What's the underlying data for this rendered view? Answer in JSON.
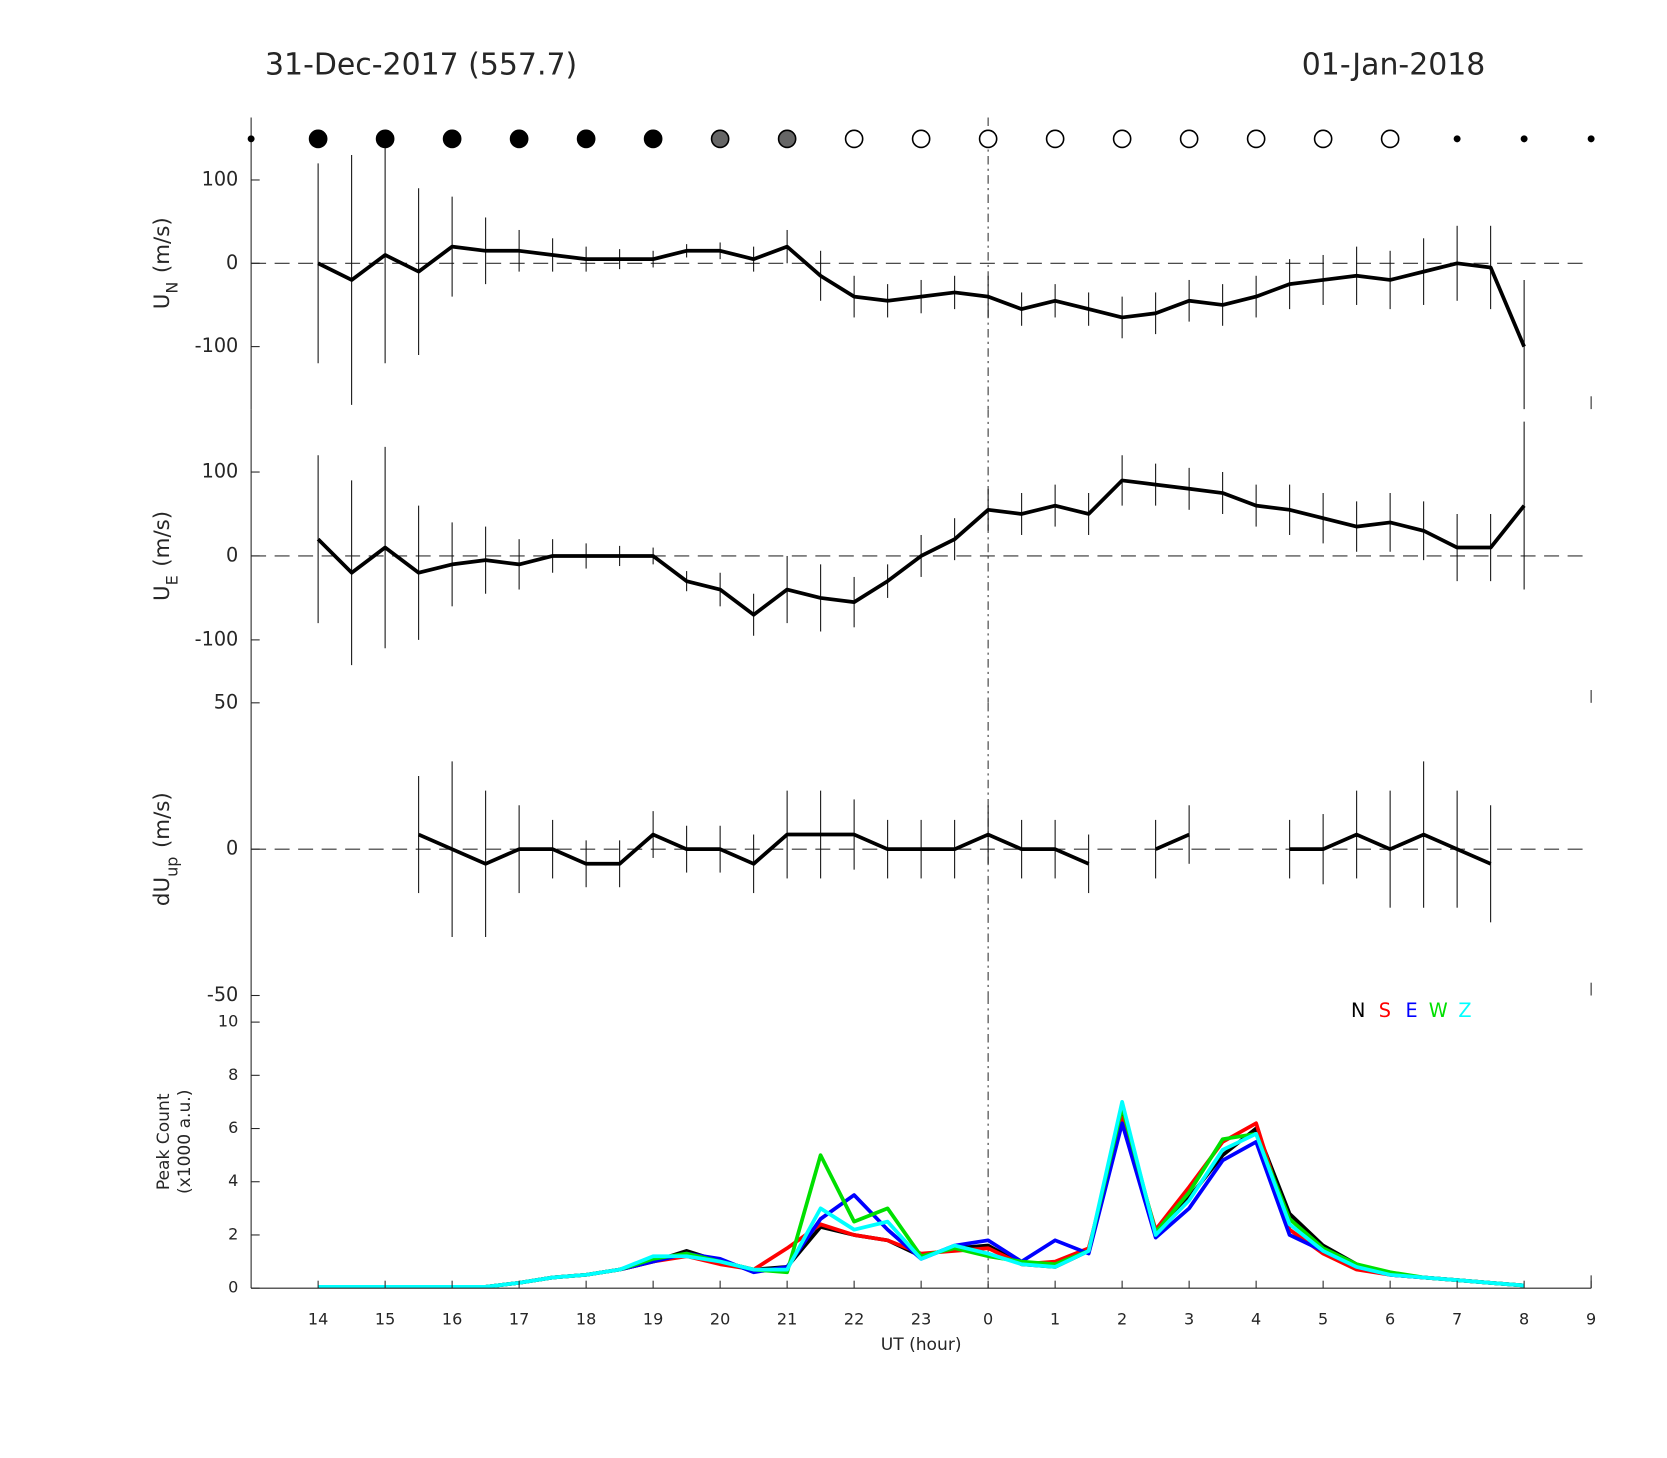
{
  "chart_data": [
    {
      "type": "line",
      "date_left": "31-Dec-2017 (557.7)",
      "date_right": "01-Jan-2018",
      "ylabel": "U",
      "ylabel_sub": "N",
      "ylabel_unit": "(m/s)",
      "xlim": [
        13,
        33
      ],
      "ylim": [
        -175,
        175
      ],
      "yticks": [
        -100,
        0,
        100
      ],
      "hline": 0,
      "vline": 24,
      "markers": {
        "x": [
          13,
          14,
          15,
          16,
          17,
          18,
          19,
          20,
          21,
          22,
          23,
          24,
          25,
          26,
          27,
          28,
          29,
          30,
          31,
          32,
          33
        ],
        "colors": [
          "black",
          "black",
          "black",
          "black",
          "black",
          "black",
          "black",
          "#666666",
          "#666666",
          "white",
          "white",
          "white",
          "white",
          "white",
          "white",
          "white",
          "white",
          "white",
          "black",
          "black",
          "black"
        ],
        "sizes": [
          "small",
          "large",
          "large",
          "large",
          "large",
          "large",
          "large",
          "large",
          "large",
          "large",
          "large",
          "large",
          "large",
          "large",
          "large",
          "large",
          "large",
          "large",
          "small",
          "small",
          "small"
        ]
      },
      "x": [
        14,
        14.5,
        15,
        15.5,
        16,
        16.5,
        17,
        17.5,
        18,
        18.5,
        19,
        19.5,
        20,
        20.5,
        21,
        21.5,
        22,
        22.5,
        23,
        23.5,
        24,
        24.5,
        25,
        25.5,
        26,
        26.5,
        27,
        27.5,
        28,
        28.5,
        29,
        29.5,
        30,
        30.5,
        31,
        31.5,
        32
      ],
      "series": [
        {
          "color": "black",
          "values": [
            0,
            -20,
            10,
            -10,
            20,
            15,
            15,
            10,
            5,
            5,
            5,
            15,
            15,
            5,
            20,
            -15,
            -40,
            -45,
            -40,
            -35,
            -40,
            -55,
            -45,
            -55,
            -65,
            -60,
            -45,
            -50,
            -40,
            -25,
            -20,
            -15,
            -20,
            -10,
            0,
            -5,
            -100
          ],
          "errors": [
            120,
            150,
            130,
            100,
            60,
            40,
            25,
            20,
            15,
            12,
            10,
            8,
            10,
            15,
            20,
            30,
            25,
            20,
            20,
            20,
            25,
            20,
            20,
            20,
            25,
            25,
            25,
            25,
            25,
            30,
            30,
            35,
            35,
            40,
            45,
            50,
            80
          ]
        }
      ]
    },
    {
      "type": "line",
      "ylabel": "U",
      "ylabel_sub": "E",
      "ylabel_unit": "(m/s)",
      "xlim": [
        13,
        33
      ],
      "ylim": [
        -175,
        175
      ],
      "yticks": [
        -100,
        0,
        100
      ],
      "hline": 0,
      "vline": 24,
      "x": [
        14,
        14.5,
        15,
        15.5,
        16,
        16.5,
        17,
        17.5,
        18,
        18.5,
        19,
        19.5,
        20,
        20.5,
        21,
        21.5,
        22,
        22.5,
        23,
        23.5,
        24,
        24.5,
        25,
        25.5,
        26,
        26.5,
        27,
        27.5,
        28,
        28.5,
        29,
        29.5,
        30,
        30.5,
        31,
        31.5,
        32
      ],
      "series": [
        {
          "color": "black",
          "values": [
            20,
            -20,
            10,
            -20,
            -10,
            -5,
            -10,
            0,
            0,
            0,
            0,
            -30,
            -40,
            -70,
            -40,
            -50,
            -55,
            -30,
            0,
            20,
            55,
            50,
            60,
            50,
            90,
            85,
            80,
            75,
            60,
            55,
            45,
            35,
            40,
            30,
            10,
            10,
            60
          ],
          "errors": [
            100,
            110,
            120,
            80,
            50,
            40,
            30,
            20,
            15,
            12,
            10,
            12,
            20,
            25,
            40,
            40,
            30,
            20,
            25,
            25,
            25,
            25,
            25,
            25,
            30,
            25,
            25,
            25,
            25,
            30,
            30,
            30,
            35,
            35,
            40,
            40,
            100
          ]
        }
      ]
    },
    {
      "type": "line",
      "ylabel": "dU",
      "ylabel_sub": "up",
      "ylabel_unit": "(m/s)",
      "xlim": [
        13,
        33
      ],
      "ylim": [
        -50,
        50
      ],
      "yticks": [
        -50,
        0,
        50
      ],
      "hline": 0,
      "vline": 24,
      "x": [
        14,
        14.5,
        15,
        15.5,
        16,
        16.5,
        17,
        17.5,
        18,
        18.5,
        19,
        19.5,
        20,
        20.5,
        21,
        21.5,
        22,
        22.5,
        23,
        23.5,
        24,
        24.5,
        25,
        25.5,
        26,
        26.5,
        27,
        27.5,
        28,
        28.5,
        29,
        29.5,
        30,
        30.5,
        31,
        31.5,
        32
      ],
      "series": [
        {
          "color": "black",
          "values": [
            null,
            null,
            null,
            5,
            0,
            -5,
            0,
            0,
            -5,
            -5,
            5,
            0,
            0,
            -5,
            5,
            5,
            5,
            0,
            0,
            0,
            5,
            0,
            0,
            -5,
            null,
            0,
            5,
            null,
            null,
            0,
            0,
            5,
            0,
            5,
            0,
            -5,
            null
          ],
          "errors": [
            null,
            null,
            null,
            20,
            30,
            25,
            15,
            10,
            8,
            8,
            8,
            8,
            8,
            10,
            15,
            15,
            12,
            10,
            10,
            10,
            10,
            10,
            10,
            10,
            null,
            10,
            10,
            null,
            null,
            10,
            12,
            15,
            20,
            25,
            20,
            20,
            null
          ]
        }
      ]
    },
    {
      "type": "line",
      "ylabel": "Peak Count",
      "ylabel_unit": "(x1000 a.u.)",
      "xlabel": "UT (hour)",
      "xlim": [
        13,
        33
      ],
      "ylim": [
        0,
        11
      ],
      "yticks": [
        0,
        2,
        4,
        6,
        8,
        10
      ],
      "vline": 24,
      "xticks": [
        14,
        15,
        16,
        17,
        18,
        19,
        20,
        21,
        22,
        23,
        {
          "value": 24,
          "label": "0"
        },
        {
          "value": 25,
          "label": "1"
        },
        {
          "value": 26,
          "label": "2"
        },
        {
          "value": 27,
          "label": "3"
        },
        {
          "value": 28,
          "label": "4"
        },
        {
          "value": 29,
          "label": "5"
        },
        {
          "value": 30,
          "label": "6"
        },
        {
          "value": 31,
          "label": "7"
        },
        {
          "value": 32,
          "label": "8"
        },
        {
          "value": 33,
          "label": "9"
        }
      ],
      "x": [
        14,
        14.5,
        15,
        15.5,
        16,
        16.5,
        17,
        17.5,
        18,
        18.5,
        19,
        19.5,
        20,
        20.5,
        21,
        21.5,
        22,
        22.5,
        23,
        23.5,
        24,
        24.5,
        25,
        25.5,
        26,
        26.5,
        27,
        27.5,
        28,
        28.5,
        29,
        29.5,
        30,
        30.5,
        31,
        31.5,
        32
      ],
      "series": [
        {
          "name": "N",
          "color": "black",
          "values": [
            0.05,
            0.05,
            0.05,
            0.05,
            0.05,
            0.05,
            0.2,
            0.4,
            0.5,
            0.7,
            1.0,
            1.4,
            1.0,
            0.7,
            0.8,
            2.3,
            2.0,
            1.8,
            1.2,
            1.5,
            1.6,
            0.9,
            0.8,
            1.4,
            6.5,
            2.0,
            3.4,
            5.0,
            6.0,
            2.8,
            1.6,
            0.9,
            0.5,
            0.4,
            0.3,
            0.2,
            0.1
          ]
        },
        {
          "name": "S",
          "color": "red",
          "values": [
            0.05,
            0.05,
            0.05,
            0.05,
            0.05,
            0.05,
            0.2,
            0.4,
            0.5,
            0.7,
            1.0,
            1.2,
            0.9,
            0.7,
            1.5,
            2.4,
            2.0,
            1.8,
            1.3,
            1.4,
            1.5,
            0.9,
            1.0,
            1.5,
            6.4,
            2.2,
            3.8,
            5.5,
            6.2,
            2.2,
            1.3,
            0.7,
            0.5,
            0.4,
            0.3,
            0.2,
            0.1
          ]
        },
        {
          "name": "E",
          "color": "blue",
          "values": [
            0.05,
            0.05,
            0.05,
            0.05,
            0.05,
            0.05,
            0.2,
            0.4,
            0.5,
            0.7,
            1.0,
            1.3,
            1.1,
            0.6,
            0.8,
            2.6,
            3.5,
            2.2,
            1.1,
            1.6,
            1.8,
            1.0,
            1.8,
            1.3,
            6.2,
            1.9,
            3.0,
            4.8,
            5.5,
            2.0,
            1.4,
            0.8,
            0.5,
            0.4,
            0.3,
            0.2,
            0.1
          ]
        },
        {
          "name": "W",
          "color": "#00e000",
          "values": [
            0.05,
            0.05,
            0.05,
            0.05,
            0.05,
            0.05,
            0.2,
            0.4,
            0.5,
            0.7,
            1.1,
            1.3,
            1.0,
            0.7,
            0.6,
            5.0,
            2.5,
            3.0,
            1.2,
            1.5,
            1.2,
            1.0,
            0.9,
            1.4,
            6.8,
            2.1,
            3.6,
            5.6,
            5.8,
            2.6,
            1.5,
            0.9,
            0.6,
            0.4,
            0.3,
            0.2,
            0.1
          ]
        },
        {
          "name": "Z",
          "color": "cyan",
          "values": [
            0.05,
            0.05,
            0.05,
            0.05,
            0.05,
            0.05,
            0.2,
            0.4,
            0.5,
            0.7,
            1.2,
            1.2,
            1.0,
            0.7,
            0.7,
            3.0,
            2.2,
            2.5,
            1.1,
            1.6,
            1.3,
            0.9,
            0.8,
            1.4,
            7.0,
            2.0,
            3.3,
            5.2,
            5.8,
            2.4,
            1.4,
            0.8,
            0.5,
            0.4,
            0.3,
            0.2,
            0.1
          ]
        }
      ]
    }
  ]
}
